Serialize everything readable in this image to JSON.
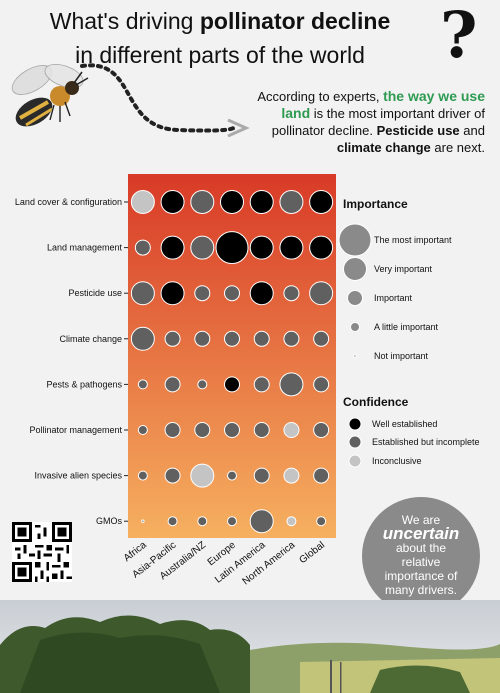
{
  "header": {
    "title_pre": "What's driving",
    "title_bold": "pollinator decline",
    "title_line2": "in different parts of the world",
    "question_mark": "?"
  },
  "intro": {
    "part1": "According to experts,",
    "highlight": "the way we use land",
    "part2": "is the most important driver of pollinator decline.",
    "bold1": "Pesticide use",
    "part3": "and",
    "bold2": "climate change",
    "part4": "are next."
  },
  "callout": {
    "line1": "We are",
    "big": "uncertain",
    "line2": "about the relative importance of many drivers."
  },
  "colors": {
    "gradient_top": "#d83a27",
    "gradient_bottom": "#f6b060",
    "well_established": "#000000",
    "established_incomplete": "#606060",
    "inconclusive": "#c4c4c4"
  },
  "chart_data": {
    "type": "bubble-matrix",
    "columns": [
      "Africa",
      "Asia-Pacific",
      "Australia/NZ",
      "Europe",
      "Latin America",
      "North America",
      "Global"
    ],
    "rows": [
      "Land cover & configuration",
      "Land management",
      "Pesticide use",
      "Climate change",
      "Pests & pathogens",
      "Pollinator management",
      "Invasive alien species",
      "GMOs"
    ],
    "importance_scale": [
      "Not important",
      "A little important",
      "Important",
      "Very important",
      "The most important"
    ],
    "confidence_scale": [
      "Well established",
      "Established but incomplete",
      "Inconclusive"
    ],
    "importance": [
      [
        3,
        3,
        3,
        3,
        3,
        3,
        3
      ],
      [
        2,
        3,
        3,
        4,
        3,
        3,
        3
      ],
      [
        3,
        3,
        2,
        2,
        3,
        2,
        3
      ],
      [
        3,
        2,
        2,
        2,
        2,
        2,
        2
      ],
      [
        1,
        2,
        1,
        2,
        2,
        3,
        2
      ],
      [
        1,
        2,
        2,
        2,
        2,
        2,
        2
      ],
      [
        1,
        2,
        3,
        1,
        2,
        2,
        2
      ],
      [
        0,
        1,
        1,
        1,
        3,
        1,
        1
      ]
    ],
    "confidence": [
      [
        2,
        0,
        1,
        0,
        0,
        1,
        0
      ],
      [
        1,
        0,
        1,
        0,
        0,
        0,
        0
      ],
      [
        1,
        0,
        1,
        1,
        0,
        1,
        1
      ],
      [
        1,
        1,
        1,
        1,
        1,
        1,
        1
      ],
      [
        1,
        1,
        1,
        0,
        1,
        1,
        1
      ],
      [
        1,
        1,
        1,
        1,
        1,
        2,
        1
      ],
      [
        1,
        1,
        2,
        1,
        1,
        2,
        1
      ],
      [
        1,
        1,
        1,
        1,
        1,
        2,
        1
      ]
    ],
    "legend": {
      "importance_title": "Importance",
      "confidence_title": "Confidence"
    }
  }
}
